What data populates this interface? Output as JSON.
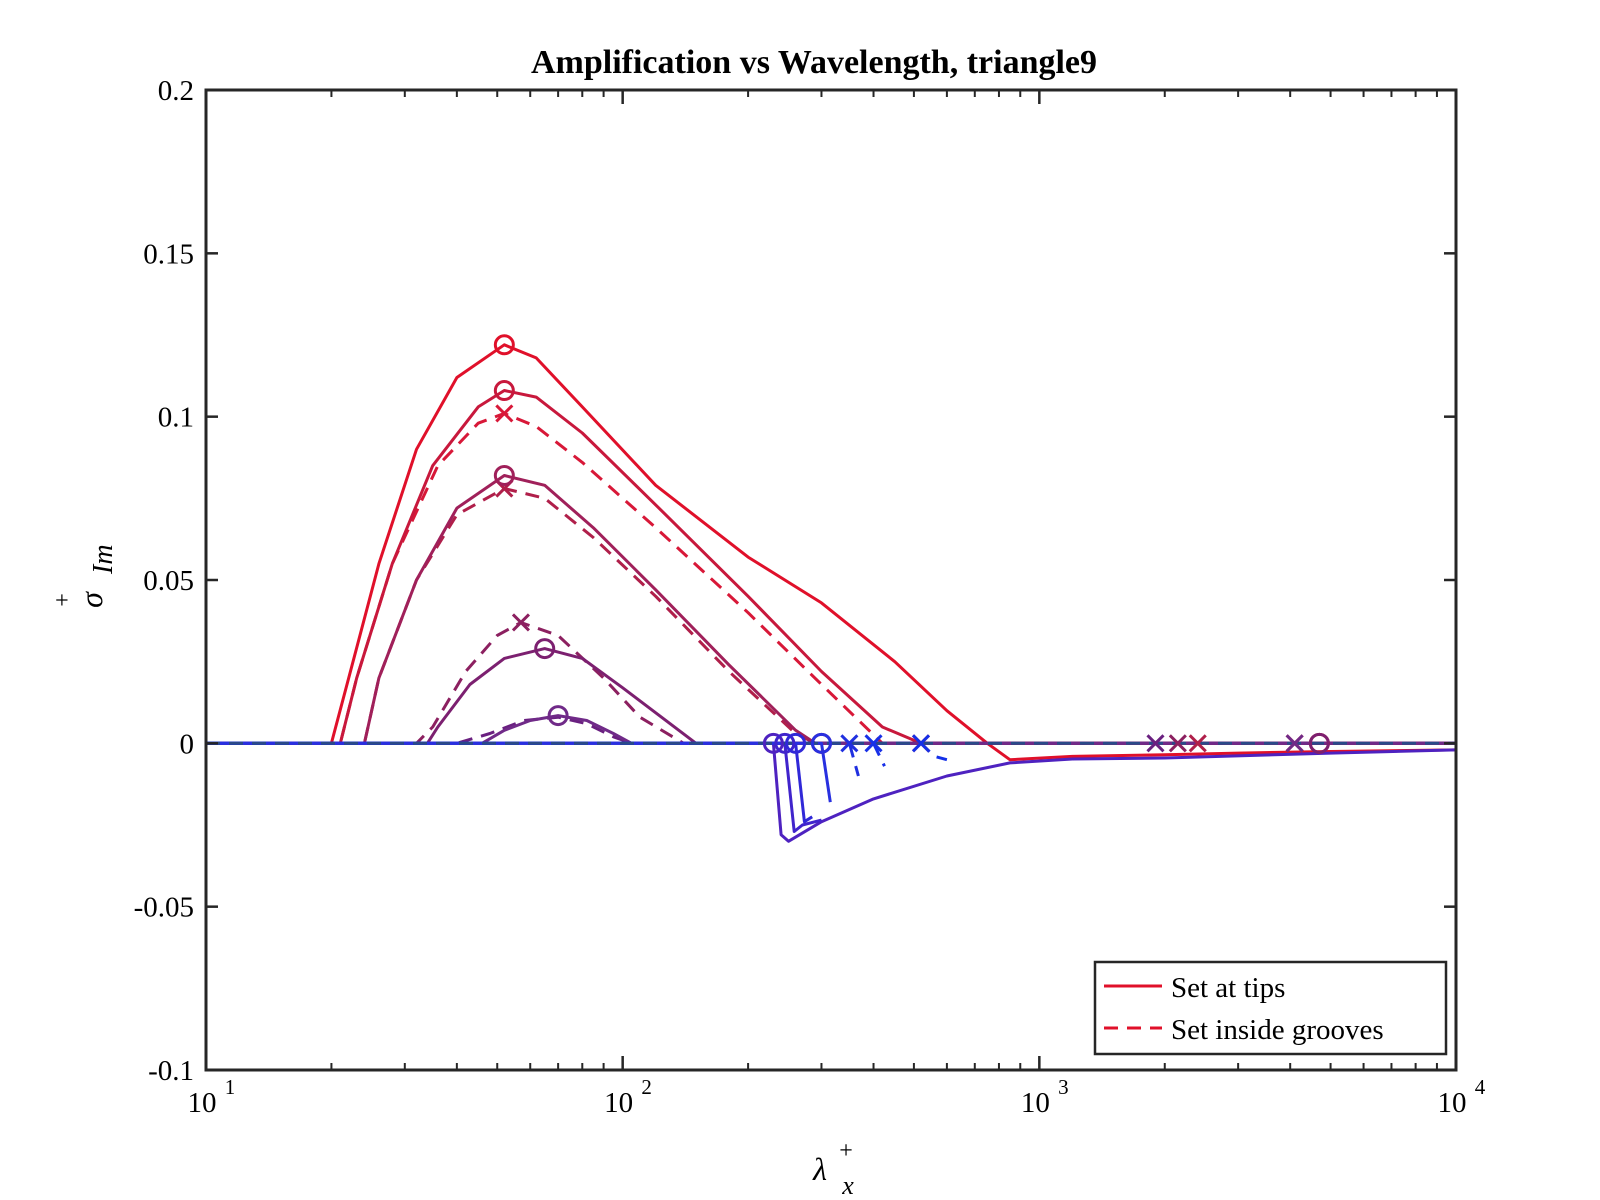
{
  "chart_data": {
    "type": "line",
    "title": "Amplification vs Wavelength, triangle9",
    "xlabel": {
      "base": "λ",
      "sup": "+",
      "sub": "x"
    },
    "ylabel": {
      "base": "σ",
      "sup": "+",
      "sub": "Im"
    },
    "xscale": "log",
    "xlim": [
      10,
      10000
    ],
    "ylim": [
      -0.1,
      0.2
    ],
    "grid": false,
    "x_ticks": [
      {
        "value": 10,
        "base": "10",
        "exp": "1"
      },
      {
        "value": 100,
        "base": "10",
        "exp": "2"
      },
      {
        "value": 1000,
        "base": "10",
        "exp": "3"
      },
      {
        "value": 10000,
        "base": "10",
        "exp": "4"
      }
    ],
    "y_ticks": [
      {
        "value": 0.2,
        "label": "0.2"
      },
      {
        "value": 0.15,
        "label": "0.15"
      },
      {
        "value": 0.1,
        "label": "0.1"
      },
      {
        "value": 0.05,
        "label": "0.05"
      },
      {
        "value": 0,
        "label": "0"
      },
      {
        "value": -0.05,
        "label": "-0.05"
      },
      {
        "value": -0.1,
        "label": "-0.1"
      }
    ],
    "legend": {
      "position": "bottom-right",
      "entries": [
        {
          "label": "Set at tips",
          "style": "solid",
          "color": "#e0102a"
        },
        {
          "label": "Set inside grooves",
          "style": "dashed",
          "color": "#e0102a"
        }
      ]
    },
    "series": [
      {
        "style": "solid",
        "color": "#e0102a",
        "points": [
          [
            10,
            0
          ],
          [
            20,
            0
          ],
          [
            22,
            0.02
          ],
          [
            26,
            0.055
          ],
          [
            32,
            0.09
          ],
          [
            40,
            0.112
          ],
          [
            52,
            0.122
          ],
          [
            62,
            0.118
          ],
          [
            80,
            0.103
          ],
          [
            120,
            0.079
          ],
          [
            200,
            0.057
          ],
          [
            300,
            0.043
          ],
          [
            450,
            0.025
          ],
          [
            600,
            0.01
          ],
          [
            750,
            0
          ],
          [
            850,
            -0.005
          ],
          [
            1200,
            -0.004
          ],
          [
            2000,
            -0.0035
          ],
          [
            3000,
            -0.003
          ],
          [
            5000,
            -0.0025
          ],
          [
            10000,
            -0.002
          ]
        ],
        "markers": [
          {
            "x": 52,
            "y": 0.122,
            "m": "o"
          },
          {
            "x": 4700,
            "y": 0,
            "m": "o"
          }
        ]
      },
      {
        "style": "dashed",
        "color": "#d81838",
        "points": [
          [
            10,
            0
          ],
          [
            21,
            0
          ],
          [
            23,
            0.02
          ],
          [
            28,
            0.055
          ],
          [
            36,
            0.085
          ],
          [
            45,
            0.098
          ],
          [
            52,
            0.101
          ],
          [
            62,
            0.097
          ],
          [
            80,
            0.086
          ],
          [
            120,
            0.066
          ],
          [
            200,
            0.04
          ],
          [
            300,
            0.018
          ],
          [
            420,
            0
          ],
          [
            1000,
            0
          ],
          [
            10000,
            0
          ]
        ],
        "markers": [
          {
            "x": 52,
            "y": 0.101,
            "m": "x"
          },
          {
            "x": 4100,
            "y": 0,
            "m": "x"
          }
        ]
      },
      {
        "style": "solid",
        "color": "#c8183c",
        "points": [
          [
            10,
            0
          ],
          [
            21,
            0
          ],
          [
            23,
            0.02
          ],
          [
            28,
            0.055
          ],
          [
            35,
            0.085
          ],
          [
            45,
            0.103
          ],
          [
            52,
            0.108
          ],
          [
            62,
            0.106
          ],
          [
            80,
            0.095
          ],
          [
            120,
            0.073
          ],
          [
            200,
            0.045
          ],
          [
            300,
            0.022
          ],
          [
            420,
            0.005
          ],
          [
            520,
            0
          ],
          [
            10000,
            0
          ]
        ],
        "markers": [
          {
            "x": 52,
            "y": 0.108,
            "m": "o"
          },
          {
            "x": 520,
            "y": 0,
            "m": "x"
          }
        ]
      },
      {
        "style": "dashed",
        "color": "#b01f4a",
        "points": [
          [
            10,
            0
          ],
          [
            24,
            0
          ],
          [
            26,
            0.02
          ],
          [
            32,
            0.05
          ],
          [
            40,
            0.07
          ],
          [
            52,
            0.078
          ],
          [
            65,
            0.075
          ],
          [
            85,
            0.063
          ],
          [
            120,
            0.045
          ],
          [
            180,
            0.022
          ],
          [
            260,
            0.003
          ],
          [
            290,
            0
          ],
          [
            10000,
            0
          ]
        ],
        "markers": [
          {
            "x": 52,
            "y": 0.078,
            "m": "x"
          },
          {
            "x": 2400,
            "y": 0,
            "m": "x"
          }
        ]
      },
      {
        "style": "solid",
        "color": "#a0205a",
        "points": [
          [
            10,
            0
          ],
          [
            24,
            0
          ],
          [
            26,
            0.02
          ],
          [
            32,
            0.05
          ],
          [
            40,
            0.072
          ],
          [
            52,
            0.082
          ],
          [
            65,
            0.079
          ],
          [
            85,
            0.066
          ],
          [
            120,
            0.047
          ],
          [
            180,
            0.024
          ],
          [
            260,
            0.004
          ],
          [
            290,
            0
          ],
          [
            10000,
            0
          ]
        ],
        "markers": [
          {
            "x": 52,
            "y": 0.082,
            "m": "o"
          },
          {
            "x": 300,
            "y": 0,
            "m": "o"
          }
        ]
      },
      {
        "style": "dashed",
        "color": "#8c2060",
        "points": [
          [
            10,
            0
          ],
          [
            32,
            0
          ],
          [
            35,
            0.005
          ],
          [
            42,
            0.022
          ],
          [
            50,
            0.033
          ],
          [
            57,
            0.037
          ],
          [
            70,
            0.033
          ],
          [
            90,
            0.02
          ],
          [
            110,
            0.008
          ],
          [
            140,
            0
          ],
          [
            10000,
            0
          ]
        ],
        "markers": [
          {
            "x": 57,
            "y": 0.037,
            "m": "x"
          },
          {
            "x": 2150,
            "y": 0,
            "m": "x"
          }
        ]
      },
      {
        "style": "solid",
        "color": "#7c2070",
        "points": [
          [
            10,
            0
          ],
          [
            34,
            0
          ],
          [
            36,
            0.005
          ],
          [
            43,
            0.018
          ],
          [
            52,
            0.026
          ],
          [
            65,
            0.029
          ],
          [
            80,
            0.026
          ],
          [
            100,
            0.017
          ],
          [
            130,
            0.006
          ],
          [
            150,
            0
          ],
          [
            10000,
            0
          ]
        ],
        "markers": [
          {
            "x": 65,
            "y": 0.029,
            "m": "o"
          },
          {
            "x": 4700,
            "y": 0,
            "m": "o"
          }
        ]
      },
      {
        "style": "dashed",
        "color": "#6a2080",
        "points": [
          [
            10,
            0
          ],
          [
            40,
            0
          ],
          [
            48,
            0.003
          ],
          [
            58,
            0.007
          ],
          [
            70,
            0.008
          ],
          [
            82,
            0.006
          ],
          [
            95,
            0.002
          ],
          [
            105,
            0
          ],
          [
            10000,
            0
          ]
        ],
        "markers": [
          {
            "x": 1900,
            "y": 0,
            "m": "x"
          }
        ]
      },
      {
        "style": "solid",
        "color": "#702a88",
        "points": [
          [
            10,
            0
          ],
          [
            46,
            0
          ],
          [
            52,
            0.004
          ],
          [
            60,
            0.007
          ],
          [
            70,
            0.0085
          ],
          [
            82,
            0.007
          ],
          [
            95,
            0.003
          ],
          [
            105,
            0
          ],
          [
            10000,
            0
          ]
        ],
        "markers": [
          {
            "x": 70,
            "y": 0.0085,
            "m": "o"
          },
          {
            "x": 4100,
            "y": 0,
            "m": "x"
          }
        ]
      },
      {
        "style": "solid",
        "color": "#4e22c0",
        "points": [
          [
            10,
            0
          ],
          [
            230,
            0
          ],
          [
            240,
            -0.028
          ],
          [
            250,
            -0.03
          ],
          [
            300,
            -0.024
          ],
          [
            400,
            -0.017
          ],
          [
            600,
            -0.01
          ],
          [
            850,
            -0.006
          ],
          [
            1200,
            -0.0048
          ],
          [
            2000,
            -0.0045
          ],
          [
            5000,
            -0.003
          ],
          [
            10000,
            -0.002
          ]
        ],
        "markers": [
          {
            "x": 230,
            "y": 0,
            "m": "o"
          }
        ]
      },
      {
        "style": "solid",
        "color": "#4024cc",
        "points": [
          [
            10,
            0
          ],
          [
            245,
            0
          ],
          [
            258,
            -0.027
          ],
          [
            270,
            -0.025
          ],
          [
            300,
            -0.0235
          ]
        ],
        "markers": [
          {
            "x": 245,
            "y": 0,
            "m": "o"
          }
        ]
      },
      {
        "style": "solid",
        "color": "#3028d8",
        "points": [
          [
            10,
            0
          ],
          [
            260,
            0
          ],
          [
            273,
            -0.024
          ],
          [
            285,
            -0.0225
          ]
        ],
        "markers": [
          {
            "x": 260,
            "y": 0,
            "m": "o"
          }
        ]
      },
      {
        "style": "solid",
        "color": "#2830e0",
        "points": [
          [
            10,
            0
          ],
          [
            300,
            0
          ],
          [
            315,
            -0.018
          ]
        ],
        "markers": [
          {
            "x": 300,
            "y": 0,
            "m": "o"
          }
        ]
      },
      {
        "style": "dashed",
        "color": "#2030e0",
        "points": [
          [
            10,
            0
          ],
          [
            350,
            0
          ],
          [
            368,
            -0.01
          ]
        ],
        "markers": [
          {
            "x": 350,
            "y": 0,
            "m": "x"
          }
        ]
      },
      {
        "style": "dashed",
        "color": "#1830e8",
        "points": [
          [
            10,
            0
          ],
          [
            400,
            0
          ],
          [
            425,
            -0.007
          ]
        ],
        "markers": [
          {
            "x": 400,
            "y": 0,
            "m": "x"
          }
        ]
      },
      {
        "style": "dashed",
        "color": "#1430e8",
        "points": [
          [
            10,
            0
          ],
          [
            520,
            0
          ],
          [
            560,
            -0.004
          ],
          [
            600,
            -0.005
          ]
        ],
        "markers": [
          {
            "x": 520,
            "y": 0,
            "m": "x"
          }
        ]
      },
      {
        "style": "dashed",
        "color": "#2a4a88",
        "points": [
          [
            10,
            0
          ],
          [
            10000,
            0
          ]
        ],
        "markers": []
      }
    ]
  }
}
